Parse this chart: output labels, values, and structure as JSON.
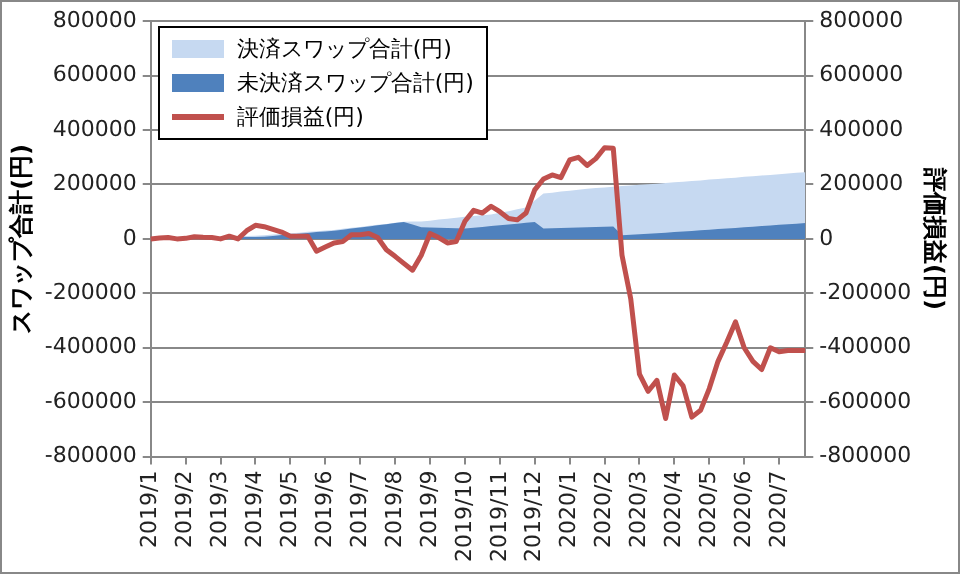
{
  "chart_data": {
    "type": "area",
    "ylabel": "スワップ合計(円)",
    "y2label": "評価損益(円)",
    "categories": [
      "2019/1",
      null,
      null,
      null,
      "2019/2",
      null,
      null,
      null,
      "2019/3",
      null,
      null,
      null,
      "2019/4",
      null,
      null,
      null,
      "2019/5",
      null,
      null,
      null,
      "2019/6",
      null,
      null,
      null,
      "2019/7",
      null,
      null,
      null,
      "2019/8",
      null,
      null,
      null,
      "2019/9",
      null,
      null,
      null,
      "2019/10",
      null,
      null,
      null,
      "2019/11",
      null,
      null,
      null,
      "2019/12",
      null,
      null,
      null,
      "2020/1",
      null,
      null,
      null,
      "2020/2",
      null,
      null,
      null,
      "2020/3",
      null,
      null,
      null,
      "2020/4",
      null,
      null,
      null,
      "2020/5",
      null,
      null,
      null,
      "2020/6",
      null,
      null,
      null,
      "2020/7",
      null,
      null,
      null
    ],
    "series": [
      {
        "name": "決済スワップ合計(円)",
        "color": "#c6d9f1",
        "values": [
          0,
          1000,
          2000,
          3000,
          4000,
          5000,
          6000,
          7000,
          8000,
          9000,
          10000,
          11000,
          12000,
          13000,
          16000,
          18000,
          21000,
          23000,
          26000,
          28000,
          31000,
          33000,
          37000,
          41000,
          44000,
          48000,
          52000,
          55000,
          59000,
          63000,
          64000,
          64000,
          67000,
          71000,
          74000,
          78000,
          81000,
          84000,
          87000,
          90000,
          96000,
          102000,
          109000,
          115000,
          141000,
          167000,
          170000,
          174000,
          177000,
          181000,
          184000,
          187000,
          189000,
          192000,
          194000,
          196000,
          199000,
          201000,
          203000,
          205000,
          208000,
          210000,
          213000,
          215000,
          218000,
          220000,
          223000,
          225000,
          228000,
          230000,
          233000,
          235000,
          238000,
          240000,
          243000,
          245000
        ]
      },
      {
        "name": "未決済スワップ合計(円)",
        "color": "#4f81bd",
        "values": [
          0,
          1000,
          1000,
          2000,
          2000,
          3000,
          3000,
          4000,
          5000,
          5000,
          6000,
          7000,
          7000,
          8000,
          11000,
          14000,
          16000,
          19000,
          22000,
          25000,
          27000,
          30000,
          34000,
          38000,
          42000,
          46000,
          50000,
          54000,
          58000,
          62000,
          53000,
          43000,
          42000,
          41000,
          40000,
          39000,
          38000,
          41000,
          44000,
          47000,
          50000,
          53000,
          56000,
          59000,
          62000,
          38000,
          39000,
          40000,
          41000,
          42000,
          43000,
          44000,
          45000,
          46000,
          13000,
          15000,
          17000,
          19000,
          21000,
          23000,
          25000,
          27000,
          29000,
          32000,
          34000,
          36000,
          38000,
          40000,
          43000,
          45000,
          47000,
          49000,
          52000,
          54000,
          56000,
          58000
        ]
      },
      {
        "name": "評価損益(円)",
        "type": "line",
        "axis": "y2",
        "color": "#c0504d",
        "values": [
          0,
          3000,
          5000,
          0,
          2000,
          8000,
          6000,
          5000,
          0,
          10000,
          0,
          30000,
          50000,
          45000,
          35000,
          25000,
          10000,
          10000,
          10000,
          -45000,
          -30000,
          -15000,
          -10000,
          15000,
          15000,
          20000,
          5000,
          -40000,
          -64000,
          -90000,
          -115000,
          -60000,
          20000,
          5000,
          -15000,
          -10000,
          65000,
          105000,
          95000,
          120000,
          100000,
          75000,
          70000,
          95000,
          180000,
          220000,
          235000,
          225000,
          290000,
          300000,
          270000,
          295000,
          335000,
          333000,
          -60000,
          -220000,
          -497000,
          -560000,
          -520000,
          -660000,
          -500000,
          -540000,
          -655000,
          -630000,
          -550000,
          -450000,
          -380000,
          -305000,
          -400000,
          -450000,
          -480000,
          -400000,
          -415000,
          -410000,
          -410000,
          -410000
        ]
      }
    ],
    "ylim": [
      -800000,
      800000
    ],
    "yticks": [
      -800000,
      -600000,
      -400000,
      -200000,
      0,
      200000,
      400000,
      600000,
      800000
    ],
    "y2lim": [
      -800000,
      800000
    ],
    "y2ticks": [
      -800000,
      -600000,
      -400000,
      -200000,
      0,
      200000,
      400000,
      600000,
      800000
    ],
    "grid": "y",
    "legend": "top left"
  }
}
